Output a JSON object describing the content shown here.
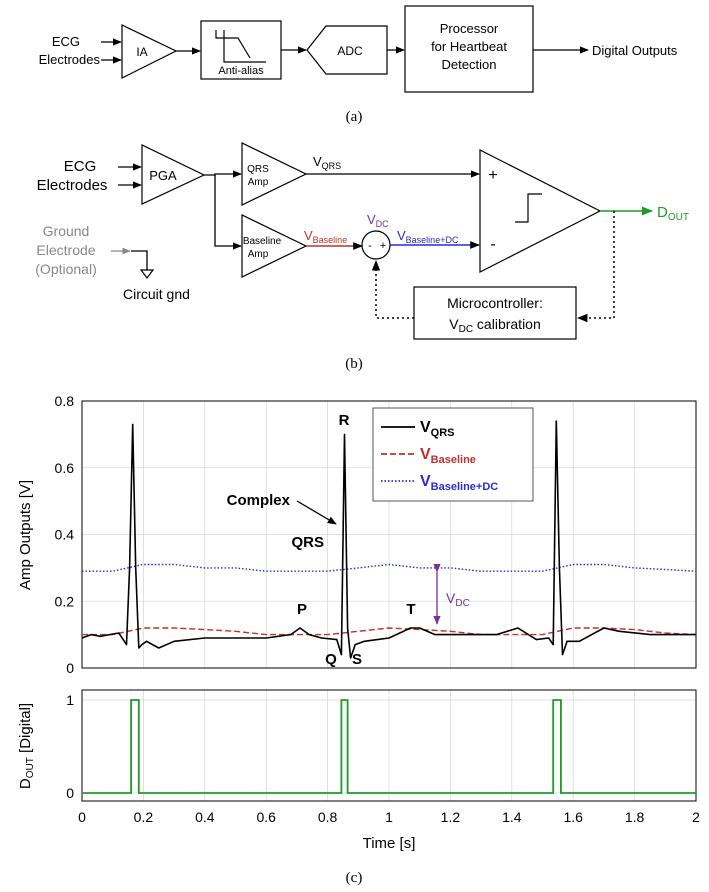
{
  "panel_a": {
    "caption": "(a)",
    "input_line1": "ECG",
    "input_line2": "Electrodes",
    "ia": "IA",
    "anti_alias": "Anti-alias",
    "adc": "ADC",
    "processor_line1": "Processor",
    "processor_line2": "for Heartbeat",
    "processor_line3": "Detection",
    "output": "Digital Outputs"
  },
  "panel_b": {
    "caption": "(b)",
    "input_line1": "ECG",
    "input_line2": "Electrodes",
    "pga": "PGA",
    "qrs_amp_line1": "QRS",
    "qrs_amp_line2": "Amp",
    "baseline_amp_line1": "Baseline",
    "baseline_amp_line2": "Amp",
    "v_qrs_main": "V",
    "v_qrs_sub": "QRS",
    "v_baseline_main": "V",
    "v_baseline_sub": "Baseline",
    "v_dc_main": "V",
    "v_dc_sub": "DC",
    "v_bdc_main": "V",
    "v_bdc_sub": "Baseline+DC",
    "sum_minus": "-",
    "sum_plus": "+",
    "comp_plus": "+",
    "comp_minus": "-",
    "dout_main": "D",
    "dout_sub": "OUT",
    "ground_line1": "Ground",
    "ground_line2": "Electrode",
    "ground_line3": "(Optional)",
    "circuit_gnd": "Circuit gnd",
    "micro_line1": "Microcontroller:",
    "micro_line2_main": "V",
    "micro_line2_sub": "DC",
    "micro_line2_rest": " calibration",
    "colors": {
      "baseline": "#c0312b",
      "baseline_dc": "#2b2bd0",
      "vdc": "#7a2f9a",
      "dout": "#1f9a2a",
      "ground": "#888888"
    }
  },
  "panel_c": {
    "caption": "(c)",
    "upper_ylabel": "Amp Outputs [V]",
    "lower_ylabel_main": "D",
    "lower_ylabel_sub": "OUT",
    "lower_ylabel_rest": " [Digital]",
    "xlabel": "Time [s]",
    "legend": [
      {
        "main": "V",
        "sub": "QRS",
        "color": "#000000",
        "style": "solid"
      },
      {
        "main": "V",
        "sub": "Baseline",
        "color": "#c0312b",
        "style": "dashed"
      },
      {
        "main": "V",
        "sub": "Baseline+DC",
        "color": "#2b2bd0",
        "style": "dotted"
      }
    ],
    "annotations": {
      "qrs_line1": "QRS",
      "qrs_line2": "Complex",
      "P": "P",
      "Q": "Q",
      "R": "R",
      "S": "S",
      "T": "T",
      "vdc_main": "V",
      "vdc_sub": "DC"
    }
  },
  "chart_data": [
    {
      "type": "line",
      "xlabel": "Time [s]",
      "ylabel": "Amp Outputs [V]",
      "xlim": [
        0,
        2
      ],
      "ylim": [
        0,
        0.8
      ],
      "xticks": [
        "0",
        "0.2",
        "0.4",
        "0.6",
        "0.8",
        "1",
        "1.2",
        "1.4",
        "1.6",
        "1.8",
        "2"
      ],
      "yticks": [
        "0",
        "0.2",
        "0.4",
        "0.6",
        "0.8"
      ],
      "grid": true,
      "legend_position": "top-right",
      "series": [
        {
          "name": "VQRS",
          "color": "#000000",
          "x": [
            0,
            0.03,
            0.06,
            0.09,
            0.12,
            0.145,
            0.155,
            0.165,
            0.175,
            0.185,
            0.195,
            0.21,
            0.25,
            0.3,
            0.4,
            0.5,
            0.6,
            0.68,
            0.71,
            0.74,
            0.78,
            0.83,
            0.845,
            0.855,
            0.865,
            0.875,
            0.89,
            0.92,
            1.0,
            1.07,
            1.1,
            1.15,
            1.25,
            1.35,
            1.42,
            1.48,
            1.52,
            1.535,
            1.545,
            1.555,
            1.565,
            1.58,
            1.62,
            1.7,
            1.75,
            1.85,
            1.95,
            2.0
          ],
          "y": [
            0.09,
            0.1,
            0.095,
            0.1,
            0.105,
            0.07,
            0.3,
            0.73,
            0.3,
            0.06,
            0.07,
            0.08,
            0.06,
            0.08,
            0.09,
            0.09,
            0.09,
            0.1,
            0.12,
            0.1,
            0.09,
            0.085,
            0.04,
            0.7,
            0.12,
            0.03,
            0.07,
            0.08,
            0.09,
            0.12,
            0.12,
            0.1,
            0.1,
            0.1,
            0.12,
            0.085,
            0.09,
            0.07,
            0.74,
            0.3,
            0.04,
            0.08,
            0.08,
            0.12,
            0.11,
            0.1,
            0.1,
            0.1
          ]
        },
        {
          "name": "VBaseline",
          "color": "#c0312b",
          "x": [
            0,
            0.1,
            0.2,
            0.3,
            0.4,
            0.5,
            0.6,
            0.7,
            0.8,
            0.9,
            1.0,
            1.1,
            1.2,
            1.3,
            1.4,
            1.5,
            1.6,
            1.7,
            1.8,
            1.9,
            2.0
          ],
          "y": [
            0.1,
            0.1,
            0.12,
            0.12,
            0.115,
            0.11,
            0.1,
            0.1,
            0.1,
            0.11,
            0.12,
            0.115,
            0.11,
            0.1,
            0.1,
            0.1,
            0.12,
            0.12,
            0.115,
            0.105,
            0.1
          ]
        },
        {
          "name": "VBaseline+DC",
          "color": "#2b2bd0",
          "x": [
            0,
            0.1,
            0.2,
            0.3,
            0.4,
            0.5,
            0.6,
            0.7,
            0.8,
            0.9,
            1.0,
            1.1,
            1.2,
            1.3,
            1.4,
            1.5,
            1.6,
            1.7,
            1.8,
            1.9,
            2.0
          ],
          "y": [
            0.29,
            0.29,
            0.31,
            0.31,
            0.3,
            0.3,
            0.29,
            0.29,
            0.29,
            0.3,
            0.31,
            0.3,
            0.3,
            0.29,
            0.29,
            0.29,
            0.31,
            0.31,
            0.3,
            0.295,
            0.29
          ]
        }
      ]
    },
    {
      "type": "line",
      "xlabel": "Time [s]",
      "ylabel": "DOUT [Digital]",
      "xlim": [
        0,
        2
      ],
      "ylim": [
        0,
        1
      ],
      "xticks": [
        "0",
        "0.2",
        "0.4",
        "0.6",
        "0.8",
        "1",
        "1.2",
        "1.4",
        "1.6",
        "1.8",
        "2"
      ],
      "yticks": [
        "0",
        "1"
      ],
      "grid": true,
      "series": [
        {
          "name": "DOUT",
          "color": "#1f9a2a",
          "x": [
            0,
            0.16,
            0.16,
            0.185,
            0.185,
            0.845,
            0.845,
            0.865,
            0.865,
            1.535,
            1.535,
            1.56,
            1.56,
            2.0
          ],
          "y": [
            0,
            0,
            1,
            1,
            0,
            0,
            1,
            1,
            0,
            0,
            1,
            1,
            0,
            0
          ]
        }
      ]
    }
  ]
}
